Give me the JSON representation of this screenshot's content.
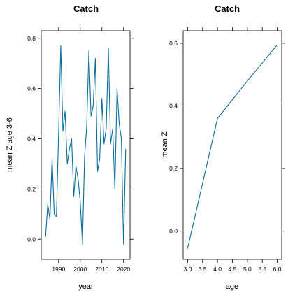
{
  "chart_data": [
    {
      "type": "line",
      "title": "Catch",
      "xlabel": "year",
      "ylabel": "mean Z age 3-6",
      "xlim": [
        1982,
        2023
      ],
      "ylim": [
        -0.08,
        0.83
      ],
      "xticks": [
        1990,
        2000,
        2010,
        2020
      ],
      "yticks": [
        0.0,
        0.2,
        0.4,
        0.6,
        0.8
      ],
      "ytick_labels": [
        "0.0",
        "0.2",
        "0.4",
        "0.6",
        "0.8"
      ],
      "color": "#0a6e9a",
      "series": [
        {
          "x": [
            1984,
            1985,
            1986,
            1987,
            1988,
            1989,
            1990,
            1991,
            1992,
            1993,
            1994,
            1995,
            1996,
            1997,
            1998,
            1999,
            2000,
            2001,
            2002,
            2003,
            2004,
            2005,
            2006,
            2007,
            2008,
            2009,
            2010,
            2011,
            2012,
            2013,
            2014,
            2015,
            2016,
            2017,
            2018,
            2019,
            2020,
            2021
          ],
          "y": [
            0.01,
            0.14,
            0.08,
            0.32,
            0.1,
            0.09,
            0.42,
            0.77,
            0.43,
            0.51,
            0.3,
            0.36,
            0.4,
            0.17,
            0.29,
            0.24,
            0.15,
            -0.02,
            0.33,
            0.45,
            0.75,
            0.49,
            0.53,
            0.72,
            0.27,
            0.32,
            0.56,
            0.38,
            0.44,
            0.76,
            0.38,
            0.44,
            0.2,
            0.6,
            0.46,
            0.4,
            -0.02,
            0.36
          ]
        }
      ]
    },
    {
      "type": "line",
      "title": "Catch",
      "xlabel": "age",
      "ylabel": "mean Z",
      "xlim": [
        2.85,
        6.15
      ],
      "ylim": [
        -0.09,
        0.64
      ],
      "xticks": [
        3.0,
        3.5,
        4.0,
        4.5,
        5.0,
        5.5,
        6.0
      ],
      "xtick_labels": [
        "3.0",
        "3.5",
        "4.0",
        "4.5",
        "5.0",
        "5.5",
        "6.0"
      ],
      "yticks": [
        0.0,
        0.2,
        0.4,
        0.6
      ],
      "ytick_labels": [
        "0.0",
        "0.2",
        "0.4",
        "0.6"
      ],
      "color": "#0a6e9a",
      "series": [
        {
          "x": [
            3,
            4,
            5,
            6
          ],
          "y": [
            -0.055,
            0.36,
            0.48,
            0.595
          ]
        }
      ]
    }
  ]
}
